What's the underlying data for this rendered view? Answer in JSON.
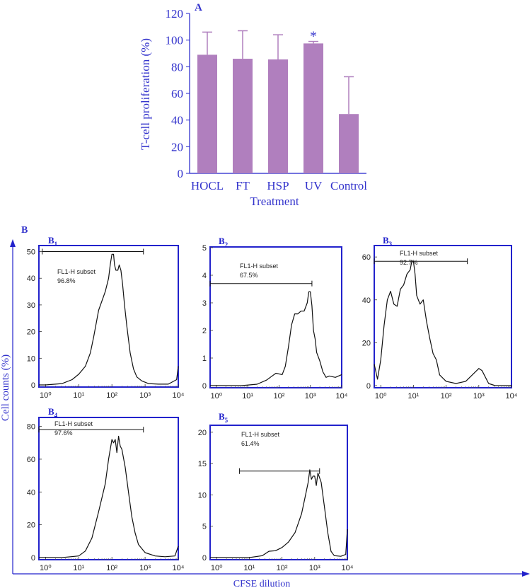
{
  "colors": {
    "bar": "#b07fbe",
    "axis_blue": "#2222cc",
    "text_blue": "#3333cc",
    "trace": "#111111",
    "gate": "#111111"
  },
  "panel_A": {
    "label": "A",
    "ylabel": "T-cell proliferation (%)",
    "xlabel": "Treatment",
    "significance_marker": "*"
  },
  "panel_B": {
    "label": "B",
    "ylabel": "Cell counts (%)",
    "xlabel": "CFSE dilution"
  },
  "chart_data": [
    {
      "id": "A",
      "type": "bar",
      "title": "A",
      "categories": [
        "HOCL",
        "FT",
        "HSP",
        "UV",
        "Control"
      ],
      "values": [
        89,
        86,
        85.5,
        97.5,
        44.5
      ],
      "error_upper": [
        17,
        21,
        18.5,
        1.5,
        28
      ],
      "significant": [
        false,
        false,
        false,
        true,
        false
      ],
      "xlabel": "Treatment",
      "ylabel": "T-cell proliferation (%)",
      "ylim": [
        0,
        120
      ],
      "yticks": [
        "0",
        "20",
        "40",
        "60",
        "80",
        "100",
        "120"
      ]
    },
    {
      "id": "B1",
      "type": "line",
      "title": "B",
      "subscript": "1",
      "gate_label": "FL1-H subset",
      "gate_percent": "96.8%",
      "gate_range_log10": [
        -0.1,
        2.95
      ],
      "gate_y": 50,
      "ylim": [
        0,
        52
      ],
      "yticks": [
        "0",
        "10",
        "20",
        "30",
        "40",
        "50"
      ],
      "xlim_log10": [
        -0.2,
        4
      ],
      "xticks": [
        "10⁰",
        "10¹",
        "10²",
        "10³",
        "10⁴"
      ],
      "x_log10": [
        -0.2,
        0,
        0.5,
        0.8,
        1.0,
        1.2,
        1.35,
        1.45,
        1.6,
        1.8,
        1.9,
        1.95,
        2.0,
        2.05,
        2.08,
        2.12,
        2.18,
        2.22,
        2.27,
        2.32,
        2.38,
        2.45,
        2.55,
        2.65,
        2.75,
        2.9,
        3.1,
        3.4,
        3.7,
        3.95,
        4.0
      ],
      "y": [
        0,
        0,
        0.5,
        2,
        4,
        7,
        12,
        18,
        28,
        35,
        40,
        45,
        49,
        49,
        45,
        43,
        43,
        45,
        43,
        38,
        30,
        22,
        12,
        6,
        3,
        1.5,
        0.5,
        0.3,
        0.3,
        2,
        7
      ]
    },
    {
      "id": "B2",
      "type": "line",
      "title": "B",
      "subscript": "2",
      "gate_label": "FL1-H subset",
      "gate_percent": "67.5%",
      "gate_range_log10": [
        -0.2,
        3.05
      ],
      "gate_y": 3.7,
      "ylim": [
        0,
        5
      ],
      "yticks": [
        "0",
        "1",
        "2",
        "3",
        "4",
        "5"
      ],
      "xlim_log10": [
        -0.2,
        4
      ],
      "xticks": [
        "10⁰",
        "10¹",
        "10²",
        "10³",
        "10⁴"
      ],
      "x_log10": [
        -0.2,
        0.8,
        1.3,
        1.6,
        1.9,
        2.1,
        2.2,
        2.3,
        2.4,
        2.5,
        2.6,
        2.7,
        2.8,
        2.9,
        2.95,
        3.0,
        3.05,
        3.1,
        3.15,
        3.2,
        3.3,
        3.4,
        3.5,
        3.6,
        3.8,
        4.0
      ],
      "y": [
        0,
        0,
        0.05,
        0.2,
        0.45,
        0.4,
        0.7,
        1.4,
        2.2,
        2.6,
        2.6,
        2.7,
        2.7,
        3.0,
        3.4,
        3.4,
        2.9,
        2.0,
        1.7,
        1.2,
        0.9,
        0.5,
        0.3,
        0.35,
        0.3,
        0.4
      ]
    },
    {
      "id": "B3",
      "type": "line",
      "title": "B",
      "subscript": "3",
      "gate_label": "FL1-H subset",
      "gate_percent": "92.7%",
      "gate_range_log10": [
        -0.2,
        2.65
      ],
      "gate_y": 58,
      "ylim": [
        0,
        65
      ],
      "yticks": [
        "0",
        "20",
        "40",
        "60"
      ],
      "xlim_log10": [
        -0.2,
        4
      ],
      "xticks": [
        "10⁰",
        "10¹",
        "10²",
        "10³",
        "10⁴"
      ],
      "x_log10": [
        -0.2,
        -0.1,
        0.0,
        0.1,
        0.2,
        0.3,
        0.4,
        0.5,
        0.6,
        0.7,
        0.8,
        0.9,
        0.95,
        1.0,
        1.05,
        1.1,
        1.2,
        1.3,
        1.4,
        1.5,
        1.6,
        1.7,
        1.8,
        2.0,
        2.3,
        2.6,
        2.8,
        3.0,
        3.1,
        3.3,
        3.5,
        3.7,
        4.0
      ],
      "y": [
        10,
        3,
        12,
        28,
        40,
        44,
        38,
        37,
        45,
        47,
        52,
        54,
        58,
        58,
        52,
        42,
        38,
        40,
        30,
        22,
        15,
        12,
        5,
        2,
        1,
        2,
        5,
        8,
        7,
        1,
        0,
        0,
        0
      ]
    },
    {
      "id": "B4",
      "type": "line",
      "title": "B",
      "subscript": "4",
      "gate_label": "FL1-H subset",
      "gate_percent": "97.6%",
      "gate_range_log10": [
        -0.2,
        2.95
      ],
      "gate_y": 78,
      "ylim": [
        0,
        85
      ],
      "yticks": [
        "0",
        "20",
        "40",
        "60",
        "80"
      ],
      "xlim_log10": [
        -0.2,
        4
      ],
      "xticks": [
        "10⁰",
        "10¹",
        "10²",
        "10³",
        "10⁴"
      ],
      "x_log10": [
        -0.2,
        0.5,
        1.0,
        1.2,
        1.4,
        1.6,
        1.8,
        1.9,
        2.0,
        2.05,
        2.1,
        2.15,
        2.2,
        2.25,
        2.3,
        2.4,
        2.5,
        2.6,
        2.7,
        2.8,
        3.0,
        3.3,
        3.6,
        3.9,
        4.0
      ],
      "y": [
        0,
        0,
        1,
        4,
        12,
        28,
        45,
        60,
        72,
        70,
        72,
        64,
        74,
        68,
        66,
        55,
        40,
        25,
        15,
        8,
        3,
        1,
        0.5,
        1,
        7
      ]
    },
    {
      "id": "B5",
      "type": "line",
      "title": "B",
      "subscript": "5",
      "gate_label": "FL1-H subset",
      "gate_percent": "61.4%",
      "gate_range_log10": [
        0.7,
        3.15
      ],
      "gate_y": 13.8,
      "ylim": [
        0,
        21
      ],
      "yticks": [
        "0",
        "5",
        "10",
        "15",
        "20"
      ],
      "xlim_log10": [
        -0.2,
        4
      ],
      "xticks": [
        "10⁰",
        "10¹",
        "10²",
        "10³",
        "10⁴"
      ],
      "x_log10": [
        -0.2,
        1.0,
        1.4,
        1.6,
        1.8,
        2.0,
        2.2,
        2.4,
        2.5,
        2.6,
        2.7,
        2.8,
        2.85,
        2.9,
        2.95,
        3.0,
        3.05,
        3.1,
        3.2,
        3.3,
        3.4,
        3.5,
        3.6,
        3.8,
        3.95,
        4.0
      ],
      "y": [
        0,
        0,
        0.3,
        1.0,
        1.1,
        1.6,
        2.5,
        4,
        5.5,
        7,
        9.5,
        12,
        14,
        12.5,
        13,
        13,
        11.5,
        13.5,
        12,
        8,
        4,
        1,
        0.3,
        0.2,
        0.5,
        4.5
      ]
    }
  ]
}
